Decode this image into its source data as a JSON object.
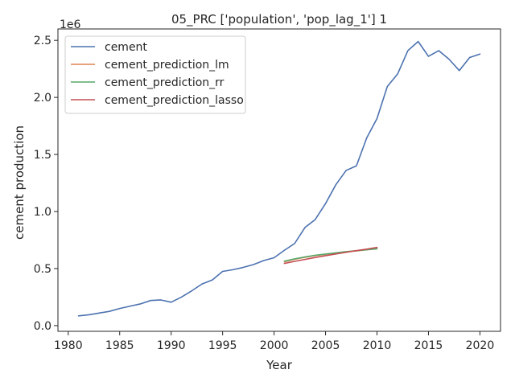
{
  "chart_data": {
    "type": "line",
    "title": "05_PRC ['population', 'pop_lag_1'] 1",
    "xlabel": "Year",
    "ylabel": "cement production",
    "y_offset_label": "1e6",
    "xlim": [
      1979,
      2022
    ],
    "ylim": [
      -0.05,
      2.6
    ],
    "y_scale": 1000000,
    "xticks": [
      1980,
      1985,
      1990,
      1995,
      2000,
      2005,
      2010,
      2015,
      2020
    ],
    "yticks": [
      0.0,
      0.5,
      1.0,
      1.5,
      2.0,
      2.5
    ],
    "ytick_labels": [
      "0.0",
      "0.5",
      "1.0",
      "1.5",
      "2.0",
      "2.5"
    ],
    "grid": false,
    "legend_position": "upper-left",
    "series": [
      {
        "name": "cement",
        "color": "#4c72b0",
        "x": [
          1981,
          1982,
          1983,
          1984,
          1985,
          1986,
          1987,
          1988,
          1989,
          1990,
          1991,
          1992,
          1993,
          1994,
          1995,
          1996,
          1997,
          1998,
          1999,
          2000,
          2001,
          2002,
          2003,
          2004,
          2005,
          2006,
          2007,
          2008,
          2009,
          2010,
          2011,
          2012,
          2013,
          2014,
          2015,
          2016,
          2017,
          2018,
          2019,
          2020
        ],
        "y": [
          0.085,
          0.095,
          0.11,
          0.125,
          0.15,
          0.17,
          0.19,
          0.22,
          0.225,
          0.205,
          0.25,
          0.305,
          0.365,
          0.4,
          0.475,
          0.49,
          0.51,
          0.535,
          0.57,
          0.595,
          0.66,
          0.72,
          0.86,
          0.93,
          1.07,
          1.235,
          1.36,
          1.4,
          1.645,
          1.815,
          2.095,
          2.205,
          2.41,
          2.49,
          2.36,
          2.41,
          2.335,
          2.235,
          2.35,
          2.38
        ]
      },
      {
        "name": "cement_prediction_lm",
        "color": "#dd8452",
        "x": [
          2001,
          2002,
          2003,
          2004,
          2005,
          2006,
          2007,
          2008,
          2009,
          2010
        ],
        "y": [
          0.56,
          0.582,
          0.599,
          0.614,
          0.625,
          0.637,
          0.647,
          0.655,
          0.665,
          0.675
        ]
      },
      {
        "name": "cement_prediction_rr",
        "color": "#55a868",
        "x": [
          2001,
          2002,
          2003,
          2004,
          2005,
          2006,
          2007,
          2008,
          2009,
          2010
        ],
        "y": [
          0.565,
          0.585,
          0.602,
          0.617,
          0.627,
          0.638,
          0.648,
          0.656,
          0.665,
          0.673
        ]
      },
      {
        "name": "cement_prediction_lasso",
        "color": "#c44e52",
        "x": [
          2001,
          2002,
          2003,
          2004,
          2005,
          2006,
          2007,
          2008,
          2009,
          2010
        ],
        "y": [
          0.545,
          0.563,
          0.58,
          0.597,
          0.613,
          0.628,
          0.643,
          0.657,
          0.67,
          0.685
        ]
      }
    ]
  }
}
